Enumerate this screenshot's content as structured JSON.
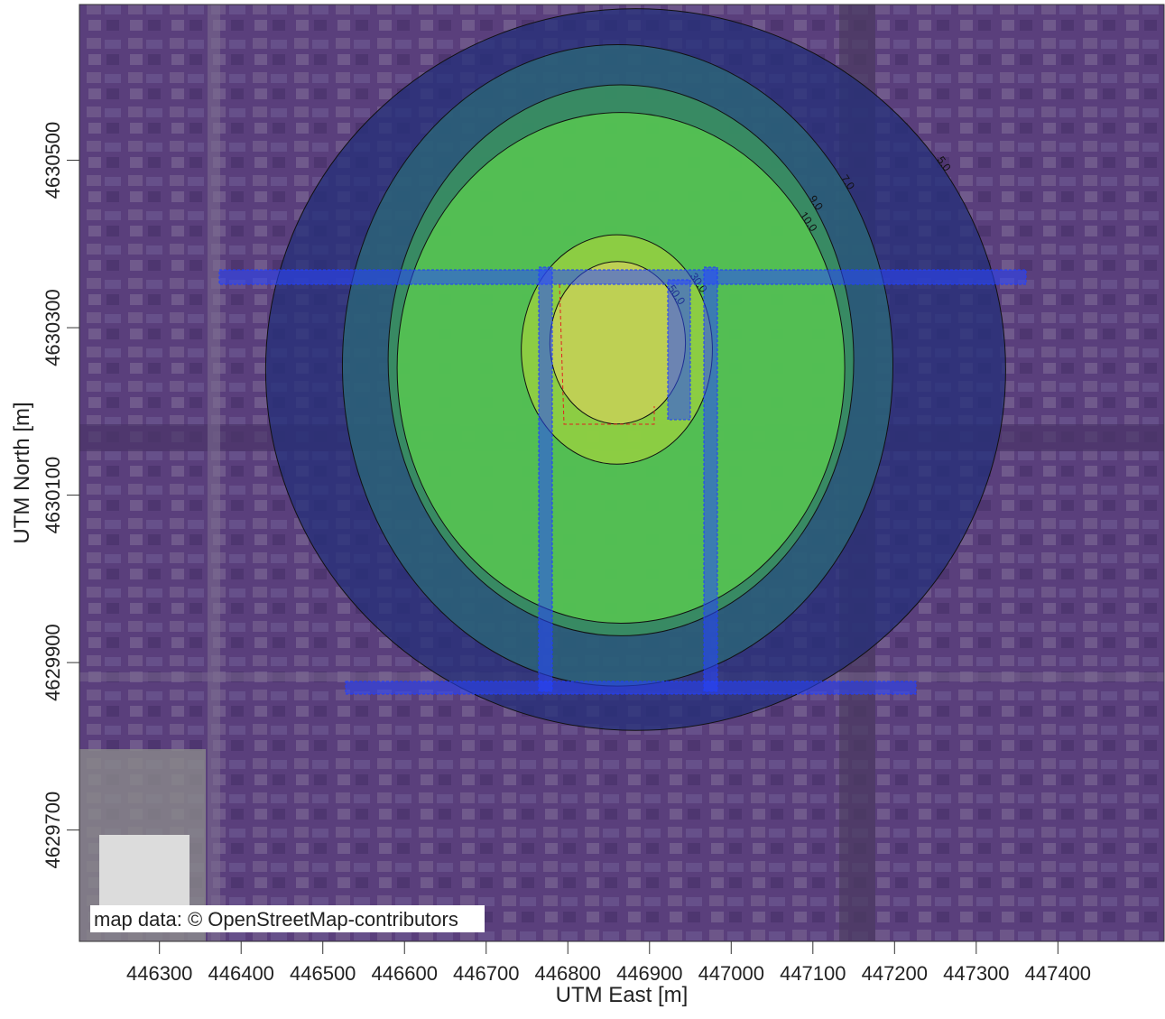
{
  "chart_data": {
    "type": "contour",
    "xlabel": "UTM East [m]",
    "ylabel": "UTM North [m]",
    "xlim": [
      446202,
      447530
    ],
    "ylim": [
      4629567,
      4630686
    ],
    "xticks": [
      446300,
      446400,
      446500,
      446600,
      446700,
      446800,
      446900,
      447000,
      447100,
      447200,
      447300,
      447400
    ],
    "yticks": [
      4629700,
      4629900,
      4630100,
      4630300,
      4630500
    ],
    "contours": [
      {
        "level": {
          "value": 5,
          "label": "5.0"
        },
        "color": "#24307a",
        "center": [
          446883,
          4630250
        ],
        "radius": [
          453,
          431
        ]
      },
      {
        "level": {
          "value": 7,
          "label": "7.0"
        },
        "color": "#2b6a78",
        "center": [
          446861,
          4630255
        ],
        "radius": [
          337,
          383
        ]
      },
      {
        "level": {
          "value": 9,
          "label": "9.0"
        },
        "color": "#3c9a5c",
        "center": [
          446865,
          4630261
        ],
        "radius": [
          285,
          329
        ]
      },
      {
        "level": {
          "value": 10,
          "label": "10.0"
        },
        "color": "#5ccf4e",
        "center": [
          446865,
          4630252
        ],
        "radius": [
          274,
          305
        ]
      },
      {
        "level": {
          "value": 30,
          "label": "30.0"
        },
        "color": "#9fd23e",
        "center": [
          446860,
          4630274
        ],
        "radius": [
          117,
          137
        ]
      },
      {
        "level": {
          "value": 50,
          "label": "50.0"
        },
        "color": "#cfd05a",
        "center": [
          446861,
          4630282
        ],
        "radius": [
          83,
          97
        ]
      }
    ],
    "attribution": "map data: © OpenStreetMap-contributors"
  }
}
